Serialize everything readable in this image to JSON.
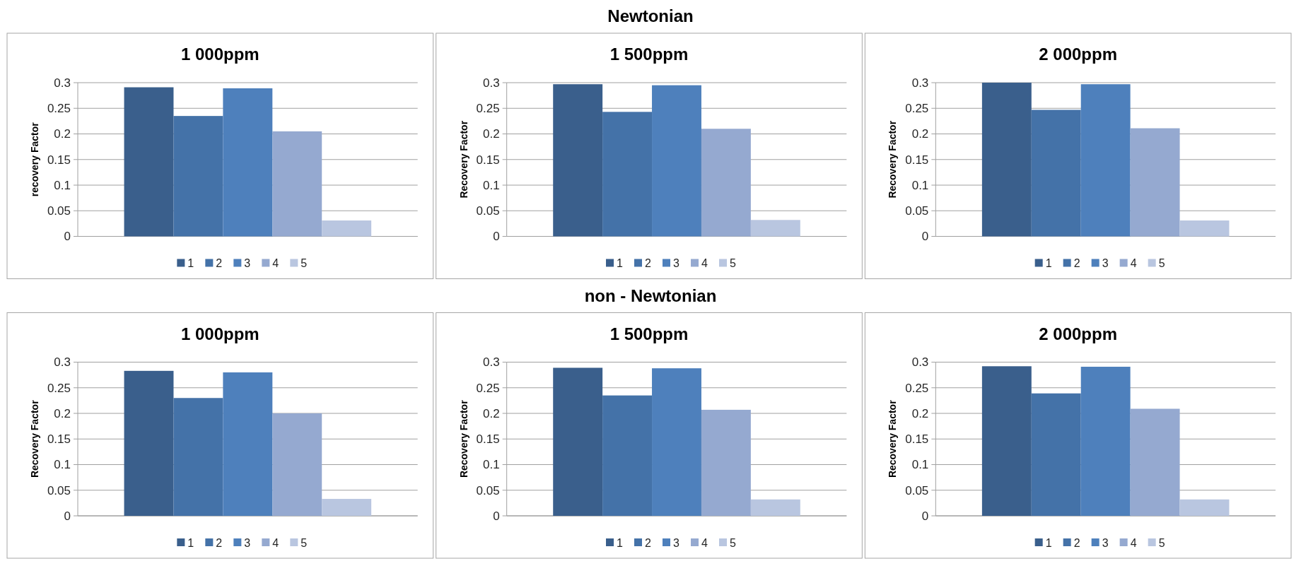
{
  "chart_data": [
    {
      "type": "bar",
      "title": "1 000ppm",
      "ylabel": "recovery Factor",
      "annotations": [
        "Newtonian"
      ],
      "categories": [
        null
      ],
      "ylim": [
        0,
        0.3
      ],
      "yticks": [
        0,
        0.05,
        0.1,
        0.15,
        0.2,
        0.25,
        0.3
      ],
      "grid": "y",
      "legend": "bottom",
      "series": [
        {
          "name": "1",
          "color": "#3a5f8c",
          "values": [
            0.291
          ]
        },
        {
          "name": "2",
          "color": "#4472a8",
          "values": [
            0.235
          ]
        },
        {
          "name": "3",
          "color": "#4e80bc",
          "values": [
            0.289
          ]
        },
        {
          "name": "4",
          "color": "#95a9d0",
          "values": [
            0.205
          ]
        },
        {
          "name": "5",
          "color": "#b9c6e0",
          "values": [
            0.031
          ]
        }
      ]
    },
    {
      "type": "bar",
      "title": "1 500ppm",
      "ylabel": "Recovery Factor",
      "categories": [
        null
      ],
      "ylim": [
        0,
        0.3
      ],
      "yticks": [
        0,
        0.05,
        0.1,
        0.15,
        0.2,
        0.25,
        0.3
      ],
      "grid": "y",
      "legend": "bottom",
      "series": [
        {
          "name": "1",
          "color": "#3a5f8c",
          "values": [
            0.297
          ]
        },
        {
          "name": "2",
          "color": "#4472a8",
          "values": [
            0.243
          ]
        },
        {
          "name": "3",
          "color": "#4e80bc",
          "values": [
            0.295
          ]
        },
        {
          "name": "4",
          "color": "#95a9d0",
          "values": [
            0.21
          ]
        },
        {
          "name": "5",
          "color": "#b9c6e0",
          "values": [
            0.032
          ]
        }
      ]
    },
    {
      "type": "bar",
      "title": "2 000ppm",
      "ylabel": "Recovery Factor",
      "categories": [
        null
      ],
      "ylim": [
        0,
        0.3
      ],
      "yticks": [
        0,
        0.05,
        0.1,
        0.15,
        0.2,
        0.25,
        0.3
      ],
      "grid": "y",
      "legend": "bottom",
      "series": [
        {
          "name": "1",
          "color": "#3a5f8c",
          "values": [
            0.3
          ]
        },
        {
          "name": "2",
          "color": "#4472a8",
          "values": [
            0.247
          ]
        },
        {
          "name": "3",
          "color": "#4e80bc",
          "values": [
            0.297
          ]
        },
        {
          "name": "4",
          "color": "#95a9d0",
          "values": [
            0.211
          ]
        },
        {
          "name": "5",
          "color": "#b9c6e0",
          "values": [
            0.031
          ]
        }
      ]
    },
    {
      "type": "bar",
      "title": "1 000ppm",
      "ylabel": "Recovery Factor",
      "annotations": [
        "non - Newtonian"
      ],
      "categories": [
        null
      ],
      "ylim": [
        0,
        0.3
      ],
      "yticks": [
        0,
        0.05,
        0.1,
        0.15,
        0.2,
        0.25,
        0.3
      ],
      "grid": "y",
      "legend": "bottom",
      "series": [
        {
          "name": "1",
          "color": "#3a5f8c",
          "values": [
            0.283
          ]
        },
        {
          "name": "2",
          "color": "#4472a8",
          "values": [
            0.23
          ]
        },
        {
          "name": "3",
          "color": "#4e80bc",
          "values": [
            0.28
          ]
        },
        {
          "name": "4",
          "color": "#95a9d0",
          "values": [
            0.2
          ]
        },
        {
          "name": "5",
          "color": "#b9c6e0",
          "values": [
            0.033
          ]
        }
      ]
    },
    {
      "type": "bar",
      "title": "1 500ppm",
      "ylabel": "Recovery Factor",
      "categories": [
        null
      ],
      "ylim": [
        0,
        0.3
      ],
      "yticks": [
        0,
        0.05,
        0.1,
        0.15,
        0.2,
        0.25,
        0.3
      ],
      "grid": "y",
      "legend": "bottom",
      "series": [
        {
          "name": "1",
          "color": "#3a5f8c",
          "values": [
            0.289
          ]
        },
        {
          "name": "2",
          "color": "#4472a8",
          "values": [
            0.235
          ]
        },
        {
          "name": "3",
          "color": "#4e80bc",
          "values": [
            0.288
          ]
        },
        {
          "name": "4",
          "color": "#95a9d0",
          "values": [
            0.207
          ]
        },
        {
          "name": "5",
          "color": "#b9c6e0",
          "values": [
            0.032
          ]
        }
      ]
    },
    {
      "type": "bar",
      "title": "2 000ppm",
      "ylabel": "Recovery Factor",
      "categories": [
        null
      ],
      "ylim": [
        0,
        0.3
      ],
      "yticks": [
        0,
        0.05,
        0.1,
        0.15,
        0.2,
        0.25,
        0.3
      ],
      "grid": "y",
      "legend": "bottom",
      "series": [
        {
          "name": "1",
          "color": "#3a5f8c",
          "values": [
            0.292
          ]
        },
        {
          "name": "2",
          "color": "#4472a8",
          "values": [
            0.239
          ]
        },
        {
          "name": "3",
          "color": "#4e80bc",
          "values": [
            0.291
          ]
        },
        {
          "name": "4",
          "color": "#95a9d0",
          "values": [
            0.209
          ]
        },
        {
          "name": "5",
          "color": "#b9c6e0",
          "values": [
            0.032
          ]
        }
      ]
    }
  ]
}
